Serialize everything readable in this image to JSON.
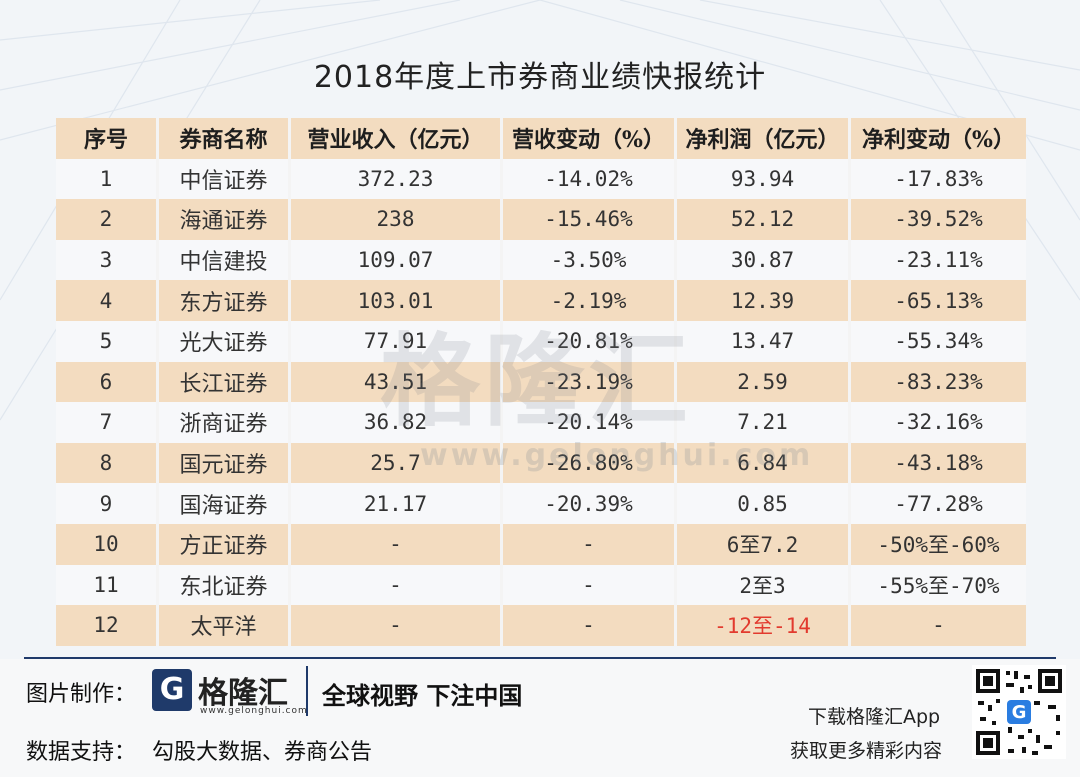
{
  "title": "2018年度上市券商业绩快报统计",
  "table": {
    "headers": [
      "序号",
      "券商名称",
      "营业收入（亿元）",
      "营收变动（%）",
      "净利润（亿元）",
      "净利变动（%）"
    ],
    "rows": [
      {
        "no": "1",
        "name": "中信证券",
        "revenue": "372.23",
        "rev_change": "-14.02%",
        "profit": "93.94",
        "profit_change": "-17.83%"
      },
      {
        "no": "2",
        "name": "海通证券",
        "revenue": "238",
        "rev_change": "-15.46%",
        "profit": "52.12",
        "profit_change": "-39.52%"
      },
      {
        "no": "3",
        "name": "中信建投",
        "revenue": "109.07",
        "rev_change": "-3.50%",
        "profit": "30.87",
        "profit_change": "-23.11%"
      },
      {
        "no": "4",
        "name": "东方证券",
        "revenue": "103.01",
        "rev_change": "-2.19%",
        "profit": "12.39",
        "profit_change": "-65.13%"
      },
      {
        "no": "5",
        "name": "光大证券",
        "revenue": "77.91",
        "rev_change": "-20.81%",
        "profit": "13.47",
        "profit_change": "-55.34%"
      },
      {
        "no": "6",
        "name": "长江证券",
        "revenue": "43.51",
        "rev_change": "-23.19%",
        "profit": "2.59",
        "profit_change": "-83.23%"
      },
      {
        "no": "7",
        "name": "浙商证券",
        "revenue": "36.82",
        "rev_change": "-20.14%",
        "profit": "7.21",
        "profit_change": "-32.16%"
      },
      {
        "no": "8",
        "name": "国元证券",
        "revenue": "25.7",
        "rev_change": "-26.80%",
        "profit": "6.84",
        "profit_change": "-43.18%"
      },
      {
        "no": "9",
        "name": "国海证券",
        "revenue": "21.17",
        "rev_change": "-20.39%",
        "profit": "0.85",
        "profit_change": "-77.28%"
      },
      {
        "no": "10",
        "name": "方正证券",
        "revenue": "-",
        "rev_change": "-",
        "profit": "6至7.2",
        "profit_change": "-50%至-60%"
      },
      {
        "no": "11",
        "name": "东北证券",
        "revenue": "-",
        "rev_change": "-",
        "profit": "2至3",
        "profit_change": "-55%至-70%"
      },
      {
        "no": "12",
        "name": "太平洋",
        "revenue": "-",
        "rev_change": "-",
        "profit": "-12至-14",
        "profit_change": "-"
      }
    ]
  },
  "watermark": {
    "text": "格隆汇",
    "url": "www.gelonghui.com"
  },
  "footer": {
    "made_by_label": "图片制作：",
    "logo_glyph": "G",
    "logo_text": "格隆汇",
    "logo_url": "www.gelonghui.com",
    "slogan": "全球视野 下注中国",
    "data_label": "数据支持：",
    "data_source": "勾股大数据、券商公告",
    "app_line1": "下载格隆汇App",
    "app_line2": "获取更多精彩内容"
  },
  "colors": {
    "stripe": "#f3dcc0",
    "accent": "#1f3a6a",
    "negative_highlight": "#e23a2e"
  }
}
